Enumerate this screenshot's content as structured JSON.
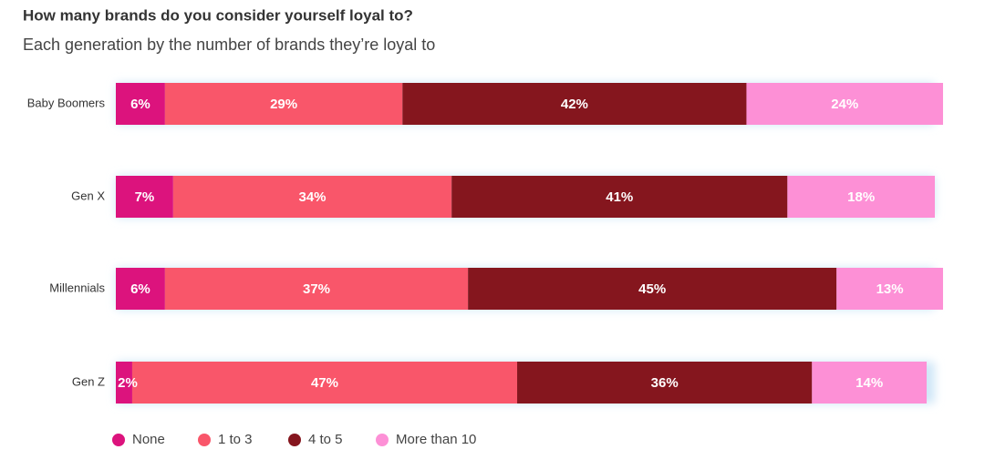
{
  "chart_data": {
    "type": "stacked_bar_horizontal",
    "title": "How many brands do you consider yourself loyal to?",
    "subtitle": "Each generation by the number of brands they’re loyal to",
    "categories": [
      "Baby Boomers",
      "Gen X",
      "Millennials",
      "Gen Z"
    ],
    "xlim": [
      0,
      100
    ],
    "series": [
      {
        "name": "None",
        "color": "#dc137d",
        "values": [
          6,
          7,
          6,
          2
        ],
        "value_labels": [
          "6%",
          "7%",
          "6%",
          "2%"
        ]
      },
      {
        "name": "1 to 3",
        "color": "#f9566a",
        "values": [
          29,
          34,
          37,
          47
        ],
        "value_labels": [
          "29%",
          "34%",
          "37%",
          "47%"
        ]
      },
      {
        "name": "4 to 5",
        "color": "#85161e",
        "values": [
          42,
          41,
          45,
          36
        ],
        "value_labels": [
          "42%",
          "41%",
          "45%",
          "36%"
        ]
      },
      {
        "name": "More than 10",
        "color": "#fd90d6",
        "values": [
          24,
          18,
          13,
          14
        ],
        "value_labels": [
          "24%",
          "18%",
          "13%",
          "14%"
        ]
      }
    ],
    "legend": "bottom-left"
  }
}
